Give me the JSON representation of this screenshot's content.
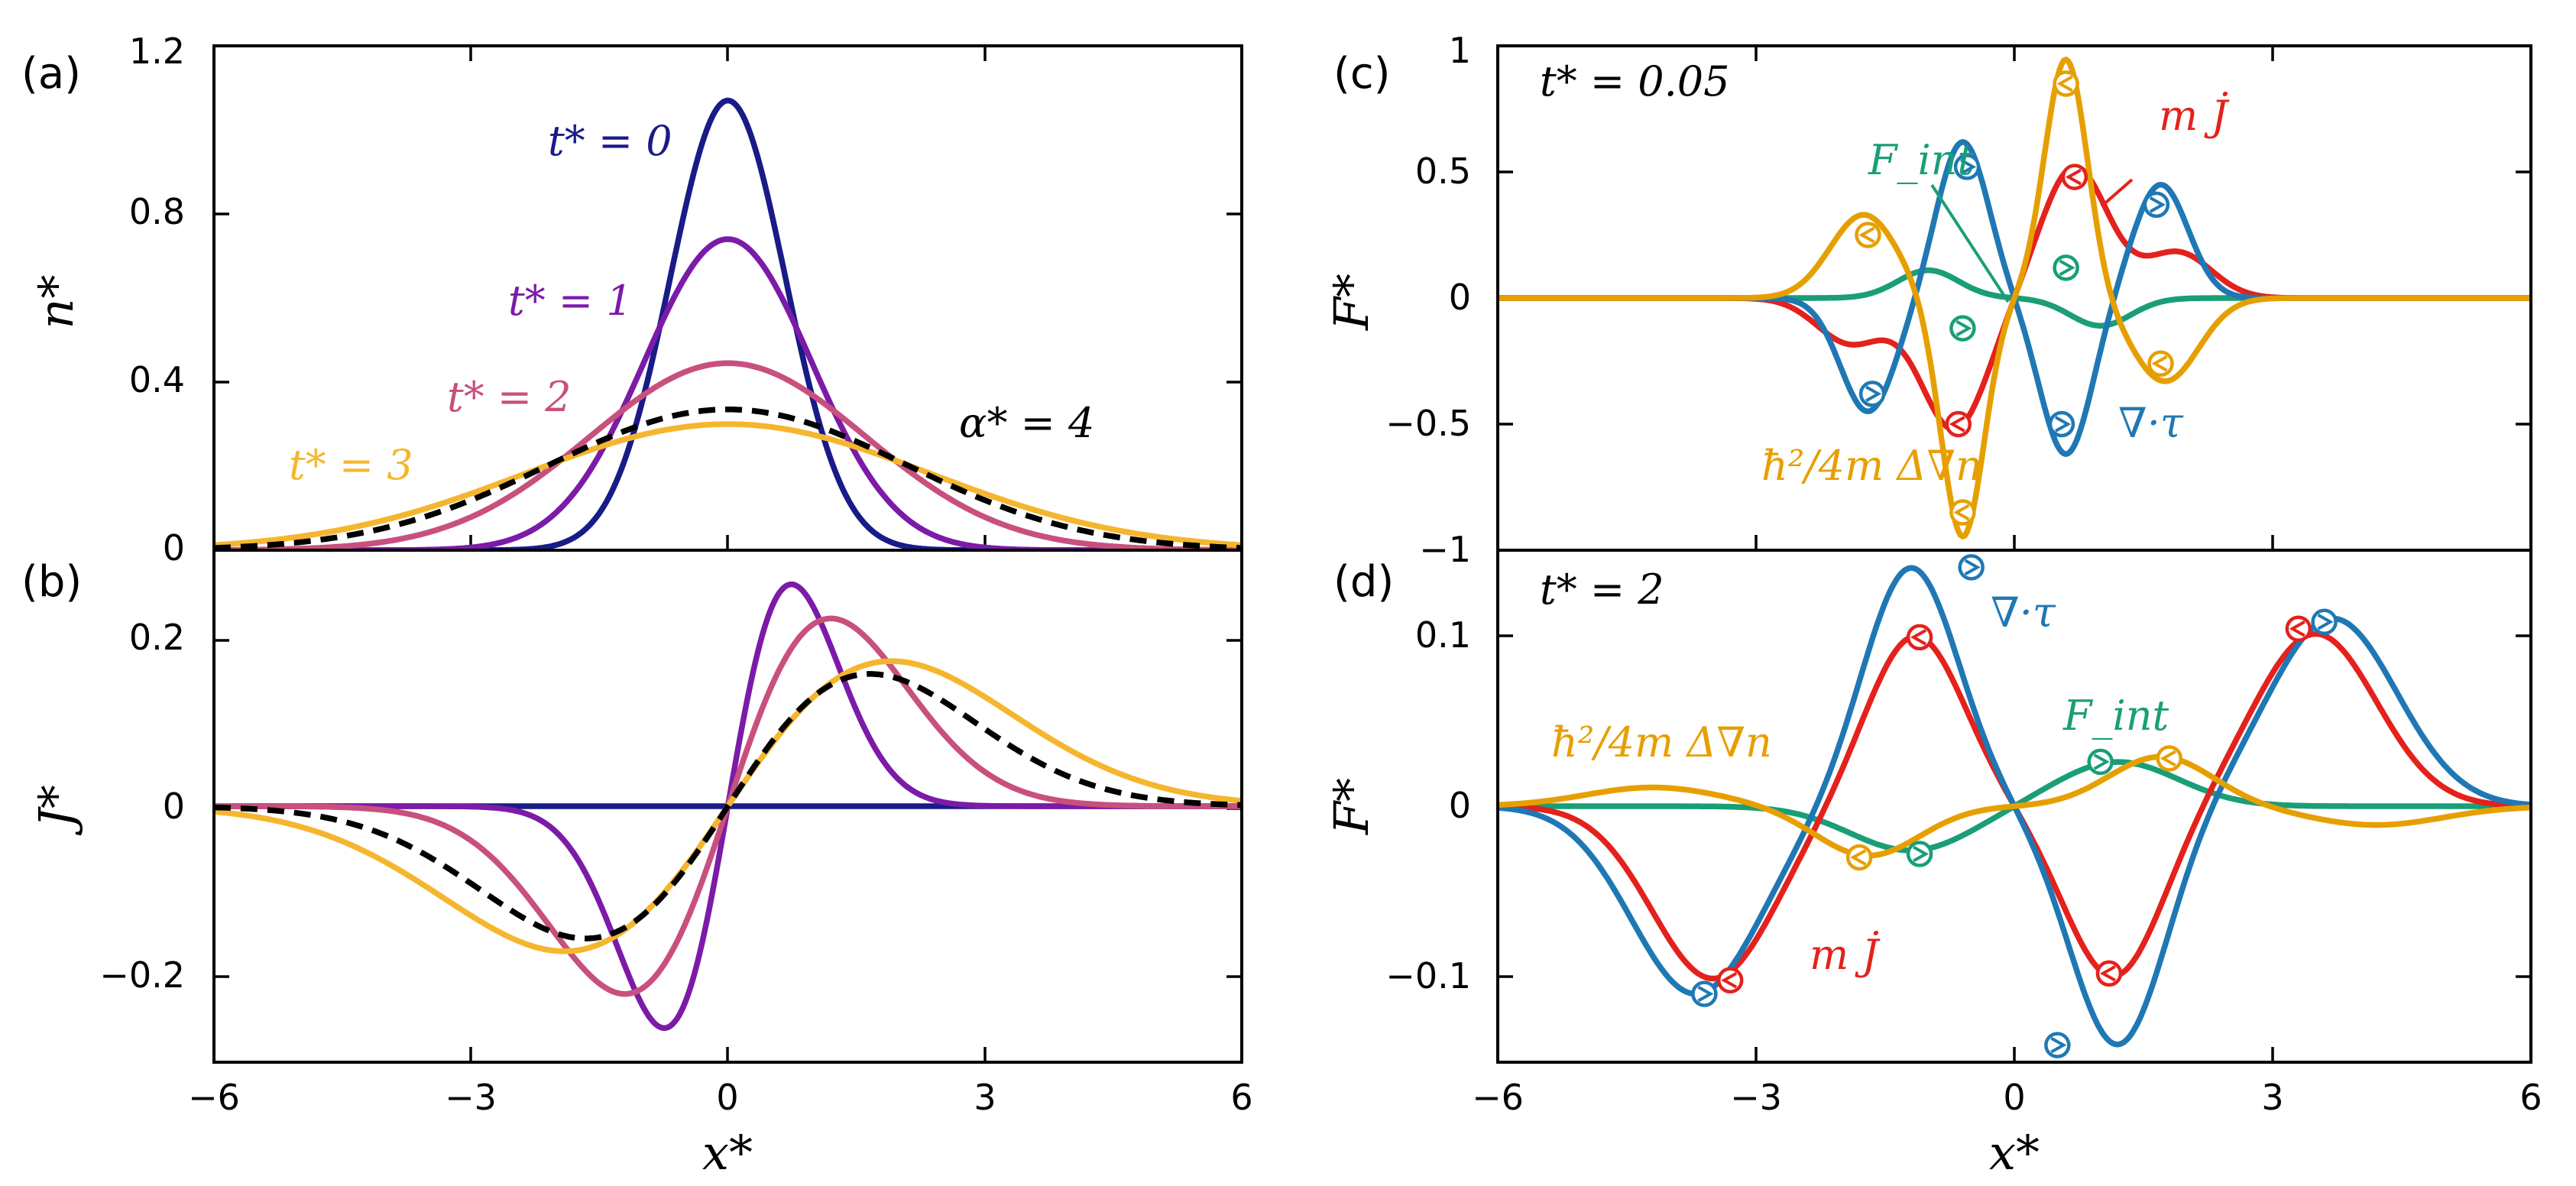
{
  "chart_data": [
    {
      "panel_label": "(a)",
      "type": "line",
      "xlabel": "",
      "ylabel": "n*",
      "xlim": [
        -6,
        6
      ],
      "ylim": [
        0,
        1.2
      ],
      "yticks": [
        "0",
        "0.4",
        "0.8",
        "1.2"
      ],
      "series": [
        {
          "name": "t* = 0",
          "color": "#191b87",
          "model": "gauss",
          "params": [
            1.07,
            0.0,
            0.95
          ]
        },
        {
          "name": "t* = 1",
          "color": "#7b1ba8",
          "model": "gauss",
          "params": [
            0.74,
            0.0,
            1.38
          ]
        },
        {
          "name": "t* = 2",
          "color": "#c8507e",
          "model": "gauss",
          "params": [
            0.445,
            0.0,
            2.28
          ]
        },
        {
          "name": "t* = 3",
          "color": "#f5b62f",
          "model": "gauss",
          "params": [
            0.3,
            0.0,
            3.35
          ]
        },
        {
          "name": "",
          "color": "#000000",
          "dashed": true,
          "model": "gauss",
          "params": [
            0.335,
            0.0,
            2.95
          ]
        }
      ],
      "annotations": [
        {
          "text": "α* = 4"
        }
      ]
    },
    {
      "panel_label": "(b)",
      "type": "line",
      "xlabel": "x*",
      "ylabel": "J*",
      "xlim": [
        -6,
        6
      ],
      "ylim": [
        -0.3,
        0.3
      ],
      "xticks": [
        "−6",
        "−3",
        "0",
        "3",
        "6"
      ],
      "yticks": [
        "−0.2",
        "0",
        "0.2"
      ],
      "series": [
        {
          "name": "t* = 0",
          "color": "#191b87",
          "model": "dgauss",
          "params": [
            0.0,
            0.0,
            1.0
          ]
        },
        {
          "name": "t* = 1",
          "color": "#7b1ba8",
          "model": "dgauss",
          "params": [
            0.26,
            0.0,
            1.05
          ]
        },
        {
          "name": "t* = 2",
          "color": "#c8507e",
          "model": "dgauss",
          "params": [
            0.22,
            0.0,
            1.7
          ]
        },
        {
          "name": "t* = 3",
          "color": "#f5b62f",
          "model": "dgauss",
          "params": [
            0.17,
            0.0,
            2.7
          ]
        },
        {
          "name": "",
          "color": "#000000",
          "dashed": true,
          "model": "dgauss",
          "params": [
            0.155,
            0.0,
            2.35
          ]
        }
      ]
    },
    {
      "panel_label": "(c)",
      "type": "line",
      "xlabel": "",
      "ylabel": "F*",
      "xlim": [
        -6,
        6
      ],
      "ylim": [
        -1,
        1
      ],
      "yticks": [
        "−1",
        "−0.5",
        "0",
        "0.5",
        "1"
      ],
      "annotations": [
        {
          "text": "t* = 0.05"
        }
      ],
      "series": [
        {
          "name": "F_int",
          "color": "#1a9e77",
          "model": "sum",
          "components": [
            [
              -0.11,
              1.0,
              0.5
            ],
            [
              -0.1,
              0.0,
              0.7
            ],
            [
              0.11,
              -1.0,
              0.5
            ],
            [
              0.1,
              0.0,
              0.7
            ]
          ],
          "markers": [
            [
              -0.6,
              -0.12,
              "left"
            ],
            [
              0.6,
              0.12,
              "left"
            ]
          ]
        },
        {
          "name": "m J̇",
          "color": "#e4211c",
          "model": "sum",
          "components": [
            [
              -0.52,
              -0.7,
              0.55
            ],
            [
              0.52,
              0.7,
              0.55
            ],
            [
              -0.18,
              -1.9,
              0.55
            ],
            [
              0.18,
              1.9,
              0.55
            ]
          ],
          "markers": [
            [
              -0.65,
              -0.5,
              "right"
            ],
            [
              0.7,
              0.48,
              "right"
            ]
          ]
        },
        {
          "name": "∇·τ",
          "color": "#1f78b4",
          "model": "sum",
          "components": [
            [
              -0.45,
              -1.7,
              0.45
            ],
            [
              0.62,
              -0.6,
              0.42
            ],
            [
              -0.62,
              0.6,
              0.42
            ],
            [
              0.45,
              1.7,
              0.45
            ]
          ],
          "markers": [
            [
              -1.65,
              -0.38,
              "left"
            ],
            [
              -0.55,
              0.52,
              "left"
            ],
            [
              0.55,
              -0.5,
              "left"
            ],
            [
              1.65,
              0.37,
              "left"
            ]
          ]
        },
        {
          "name": "ħ²/4m Δ∇n",
          "color": "#e69f00",
          "model": "sum",
          "components": [
            [
              0.33,
              -1.75,
              0.55
            ],
            [
              -0.95,
              -0.6,
              0.35
            ],
            [
              0.95,
              0.6,
              0.35
            ],
            [
              -0.33,
              1.75,
              0.55
            ]
          ],
          "markers": [
            [
              -1.7,
              0.25,
              "right"
            ],
            [
              -0.6,
              -0.85,
              "right"
            ],
            [
              0.6,
              0.85,
              "right"
            ],
            [
              1.7,
              -0.26,
              "right"
            ]
          ]
        }
      ]
    },
    {
      "panel_label": "(d)",
      "type": "line",
      "xlabel": "x*",
      "ylabel": "F*",
      "xlim": [
        -6,
        6
      ],
      "ylim": [
        -0.15,
        0.15
      ],
      "xticks": [
        "−6",
        "−3",
        "0",
        "3",
        "6"
      ],
      "yticks": [
        "−0.1",
        "0",
        "0.1"
      ],
      "annotations": [
        {
          "text": "t* = 2"
        }
      ],
      "series": [
        {
          "name": "F_int",
          "color": "#1a9e77",
          "model": "sum",
          "components": [
            [
              -0.026,
              -1.2,
              1.0
            ],
            [
              0.026,
              1.2,
              1.0
            ]
          ],
          "markers": [
            [
              -1.1,
              -0.028,
              "left"
            ],
            [
              1.0,
              0.026,
              "left"
            ]
          ]
        },
        {
          "name": "m J̇",
          "color": "#e4211c",
          "model": "sum",
          "components": [
            [
              -0.101,
              -3.5,
              1.0
            ],
            [
              0.1,
              -1.15,
              0.8
            ],
            [
              -0.1,
              1.15,
              0.8
            ],
            [
              0.101,
              3.5,
              1.0
            ]
          ],
          "markers": [
            [
              -3.3,
              -0.102,
              "right"
            ],
            [
              -1.1,
              0.099,
              "right"
            ],
            [
              1.1,
              -0.098,
              "right"
            ],
            [
              3.3,
              0.104,
              "right"
            ]
          ]
        },
        {
          "name": "∇·τ",
          "color": "#1f78b4",
          "model": "sum",
          "components": [
            [
              -0.11,
              -3.7,
              1.05
            ],
            [
              0.14,
              -1.2,
              0.78
            ],
            [
              -0.14,
              1.2,
              0.78
            ],
            [
              0.11,
              3.7,
              1.05
            ]
          ],
          "markers": [
            [
              -3.6,
              -0.11,
              "left"
            ],
            [
              -0.5,
              0.14,
              "left"
            ],
            [
              0.5,
              -0.14,
              "left"
            ],
            [
              3.6,
              0.108,
              "left"
            ]
          ]
        },
        {
          "name": "ħ²/4m Δ∇n",
          "color": "#e69f00",
          "model": "sum",
          "components": [
            [
              0.011,
              -4.2,
              1.1
            ],
            [
              -0.029,
              -1.7,
              0.85
            ],
            [
              0.029,
              1.7,
              0.85
            ],
            [
              -0.011,
              4.2,
              1.1
            ]
          ],
          "markers": [
            [
              -1.8,
              -0.03,
              "right"
            ],
            [
              1.8,
              0.028,
              "right"
            ]
          ]
        }
      ]
    }
  ]
}
